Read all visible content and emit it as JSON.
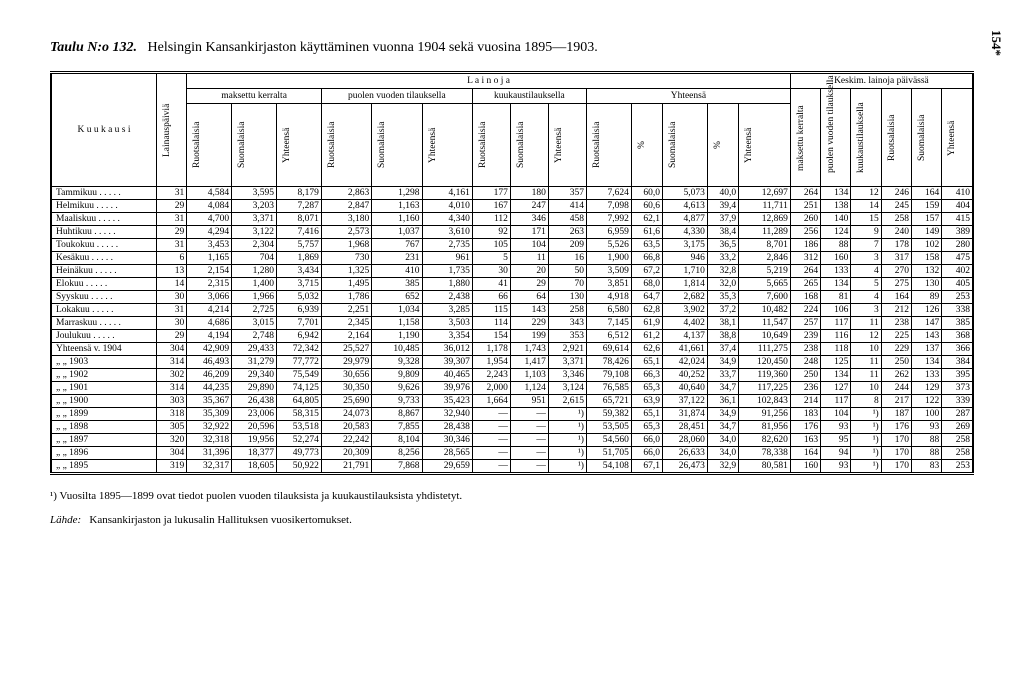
{
  "page_number": "154*",
  "table_no": "Taulu N:o 132.",
  "title": "Helsingin Kansankirjaston käyttäminen vuonna 1904 sekä vuosina 1895—1903.",
  "col_labels": {
    "kuukausi": "K u u k a u s i",
    "lainauspaivia": "Lainauspäiviä",
    "lainoja": "L a i n o j a",
    "keskim": "Keskim. lainoja päivässä",
    "maksettu_kerralta": "maksettu kerralta",
    "puolen_vuoden": "puolen vuoden tilauksella",
    "kuukaustilauk": "kuukaustilauksella",
    "yhteensa": "Yhteensä",
    "ruotsalaisia": "Ruotsalaisia",
    "suomalaisia": "Suomalaisia",
    "yht": "Yhteensä",
    "pct": "%",
    "maksettu_ker": "maksettu kerralta",
    "puolen_vuoden_til": "puolen vuoden tilauksella",
    "kuukaustilauk2": "kuukaustilauksella"
  },
  "months": [
    {
      "name": "Tammikuu",
      "lp": "31",
      "mk_r": "4,584",
      "mk_s": "3,595",
      "mk_y": "8,179",
      "pv_r": "2,863",
      "pv_s": "1,298",
      "pv_y": "4,161",
      "kt_r": "177",
      "kt_s": "180",
      "kt_y": "357",
      "yh_r": "7,624",
      "yh_rp": "60,0",
      "yh_s": "5,073",
      "yh_sp": "40,0",
      "yh_y": "12,697",
      "km_m": "264",
      "km_p": "134",
      "km_k": "12",
      "km_r": "246",
      "km_s": "164",
      "km_y": "410"
    },
    {
      "name": "Helmikuu",
      "lp": "29",
      "mk_r": "4,084",
      "mk_s": "3,203",
      "mk_y": "7,287",
      "pv_r": "2,847",
      "pv_s": "1,163",
      "pv_y": "4,010",
      "kt_r": "167",
      "kt_s": "247",
      "kt_y": "414",
      "yh_r": "7,098",
      "yh_rp": "60,6",
      "yh_s": "4,613",
      "yh_sp": "39,4",
      "yh_y": "11,711",
      "km_m": "251",
      "km_p": "138",
      "km_k": "14",
      "km_r": "245",
      "km_s": "159",
      "km_y": "404"
    },
    {
      "name": "Maaliskuu",
      "lp": "31",
      "mk_r": "4,700",
      "mk_s": "3,371",
      "mk_y": "8,071",
      "pv_r": "3,180",
      "pv_s": "1,160",
      "pv_y": "4,340",
      "kt_r": "112",
      "kt_s": "346",
      "kt_y": "458",
      "yh_r": "7,992",
      "yh_rp": "62,1",
      "yh_s": "4,877",
      "yh_sp": "37,9",
      "yh_y": "12,869",
      "km_m": "260",
      "km_p": "140",
      "km_k": "15",
      "km_r": "258",
      "km_s": "157",
      "km_y": "415"
    },
    {
      "name": "Huhtikuu",
      "lp": "29",
      "mk_r": "4,294",
      "mk_s": "3,122",
      "mk_y": "7,416",
      "pv_r": "2,573",
      "pv_s": "1,037",
      "pv_y": "3,610",
      "kt_r": "92",
      "kt_s": "171",
      "kt_y": "263",
      "yh_r": "6,959",
      "yh_rp": "61,6",
      "yh_s": "4,330",
      "yh_sp": "38,4",
      "yh_y": "11,289",
      "km_m": "256",
      "km_p": "124",
      "km_k": "9",
      "km_r": "240",
      "km_s": "149",
      "km_y": "389"
    },
    {
      "name": "Toukokuu",
      "lp": "31",
      "mk_r": "3,453",
      "mk_s": "2,304",
      "mk_y": "5,757",
      "pv_r": "1,968",
      "pv_s": "767",
      "pv_y": "2,735",
      "kt_r": "105",
      "kt_s": "104",
      "kt_y": "209",
      "yh_r": "5,526",
      "yh_rp": "63,5",
      "yh_s": "3,175",
      "yh_sp": "36,5",
      "yh_y": "8,701",
      "km_m": "186",
      "km_p": "88",
      "km_k": "7",
      "km_r": "178",
      "km_s": "102",
      "km_y": "280"
    },
    {
      "name": "Kesäkuu",
      "lp": "6",
      "mk_r": "1,165",
      "mk_s": "704",
      "mk_y": "1,869",
      "pv_r": "730",
      "pv_s": "231",
      "pv_y": "961",
      "kt_r": "5",
      "kt_s": "11",
      "kt_y": "16",
      "yh_r": "1,900",
      "yh_rp": "66,8",
      "yh_s": "946",
      "yh_sp": "33,2",
      "yh_y": "2,846",
      "km_m": "312",
      "km_p": "160",
      "km_k": "3",
      "km_r": "317",
      "km_s": "158",
      "km_y": "475"
    },
    {
      "name": "Heinäkuu",
      "lp": "13",
      "mk_r": "2,154",
      "mk_s": "1,280",
      "mk_y": "3,434",
      "pv_r": "1,325",
      "pv_s": "410",
      "pv_y": "1,735",
      "kt_r": "30",
      "kt_s": "20",
      "kt_y": "50",
      "yh_r": "3,509",
      "yh_rp": "67,2",
      "yh_s": "1,710",
      "yh_sp": "32,8",
      "yh_y": "5,219",
      "km_m": "264",
      "km_p": "133",
      "km_k": "4",
      "km_r": "270",
      "km_s": "132",
      "km_y": "402"
    },
    {
      "name": "Elokuu",
      "lp": "14",
      "mk_r": "2,315",
      "mk_s": "1,400",
      "mk_y": "3,715",
      "pv_r": "1,495",
      "pv_s": "385",
      "pv_y": "1,880",
      "kt_r": "41",
      "kt_s": "29",
      "kt_y": "70",
      "yh_r": "3,851",
      "yh_rp": "68,0",
      "yh_s": "1,814",
      "yh_sp": "32,0",
      "yh_y": "5,665",
      "km_m": "265",
      "km_p": "134",
      "km_k": "5",
      "km_r": "275",
      "km_s": "130",
      "km_y": "405"
    },
    {
      "name": "Syyskuu",
      "lp": "30",
      "mk_r": "3,066",
      "mk_s": "1,966",
      "mk_y": "5,032",
      "pv_r": "1,786",
      "pv_s": "652",
      "pv_y": "2,438",
      "kt_r": "66",
      "kt_s": "64",
      "kt_y": "130",
      "yh_r": "4,918",
      "yh_rp": "64,7",
      "yh_s": "2,682",
      "yh_sp": "35,3",
      "yh_y": "7,600",
      "km_m": "168",
      "km_p": "81",
      "km_k": "4",
      "km_r": "164",
      "km_s": "89",
      "km_y": "253"
    },
    {
      "name": "Lokakuu",
      "lp": "31",
      "mk_r": "4,214",
      "mk_s": "2,725",
      "mk_y": "6,939",
      "pv_r": "2,251",
      "pv_s": "1,034",
      "pv_y": "3,285",
      "kt_r": "115",
      "kt_s": "143",
      "kt_y": "258",
      "yh_r": "6,580",
      "yh_rp": "62,8",
      "yh_s": "3,902",
      "yh_sp": "37,2",
      "yh_y": "10,482",
      "km_m": "224",
      "km_p": "106",
      "km_k": "3",
      "km_r": "212",
      "km_s": "126",
      "km_y": "338"
    },
    {
      "name": "Marraskuu",
      "lp": "30",
      "mk_r": "4,686",
      "mk_s": "3,015",
      "mk_y": "7,701",
      "pv_r": "2,345",
      "pv_s": "1,158",
      "pv_y": "3,503",
      "kt_r": "114",
      "kt_s": "229",
      "kt_y": "343",
      "yh_r": "7,145",
      "yh_rp": "61,9",
      "yh_s": "4,402",
      "yh_sp": "38,1",
      "yh_y": "11,547",
      "km_m": "257",
      "km_p": "117",
      "km_k": "11",
      "km_r": "238",
      "km_s": "147",
      "km_y": "385"
    },
    {
      "name": "Joulukuu",
      "lp": "29",
      "mk_r": "4,194",
      "mk_s": "2,748",
      "mk_y": "6,942",
      "pv_r": "2,164",
      "pv_s": "1,190",
      "pv_y": "3,354",
      "kt_r": "154",
      "kt_s": "199",
      "kt_y": "353",
      "yh_r": "6,512",
      "yh_rp": "61,2",
      "yh_s": "4,137",
      "yh_sp": "38,8",
      "yh_y": "10,649",
      "km_m": "239",
      "km_p": "116",
      "km_k": "12",
      "km_r": "225",
      "km_s": "143",
      "km_y": "368"
    }
  ],
  "years": [
    {
      "name": "Yhteensä v. 1904",
      "lp": "304",
      "mk_r": "42,909",
      "mk_s": "29,433",
      "mk_y": "72,342",
      "pv_r": "25,527",
      "pv_s": "10,485",
      "pv_y": "36,012",
      "kt_r": "1,178",
      "kt_s": "1,743",
      "kt_y": "2,921",
      "yh_r": "69,614",
      "yh_rp": "62,6",
      "yh_s": "41,661",
      "yh_sp": "37,4",
      "yh_y": "111,275",
      "km_m": "238",
      "km_p": "118",
      "km_k": "10",
      "km_r": "229",
      "km_s": "137",
      "km_y": "366"
    },
    {
      "name": "„       „   1903",
      "lp": "314",
      "mk_r": "46,493",
      "mk_s": "31,279",
      "mk_y": "77,772",
      "pv_r": "29,979",
      "pv_s": "9,328",
      "pv_y": "39,307",
      "kt_r": "1,954",
      "kt_s": "1,417",
      "kt_y": "3,371",
      "yh_r": "78,426",
      "yh_rp": "65,1",
      "yh_s": "42,024",
      "yh_sp": "34,9",
      "yh_y": "120,450",
      "km_m": "248",
      "km_p": "125",
      "km_k": "11",
      "km_r": "250",
      "km_s": "134",
      "km_y": "384"
    },
    {
      "name": "„       „   1902",
      "lp": "302",
      "mk_r": "46,209",
      "mk_s": "29,340",
      "mk_y": "75,549",
      "pv_r": "30,656",
      "pv_s": "9,809",
      "pv_y": "40,465",
      "kt_r": "2,243",
      "kt_s": "1,103",
      "kt_y": "3,346",
      "yh_r": "79,108",
      "yh_rp": "66,3",
      "yh_s": "40,252",
      "yh_sp": "33,7",
      "yh_y": "119,360",
      "km_m": "250",
      "km_p": "134",
      "km_k": "11",
      "km_r": "262",
      "km_s": "133",
      "km_y": "395"
    },
    {
      "name": "„       „   1901",
      "lp": "314",
      "mk_r": "44,235",
      "mk_s": "29,890",
      "mk_y": "74,125",
      "pv_r": "30,350",
      "pv_s": "9,626",
      "pv_y": "39,976",
      "kt_r": "2,000",
      "kt_s": "1,124",
      "kt_y": "3,124",
      "yh_r": "76,585",
      "yh_rp": "65,3",
      "yh_s": "40,640",
      "yh_sp": "34,7",
      "yh_y": "117,225",
      "km_m": "236",
      "km_p": "127",
      "km_k": "10",
      "km_r": "244",
      "km_s": "129",
      "km_y": "373"
    },
    {
      "name": "„       „   1900",
      "lp": "303",
      "mk_r": "35,367",
      "mk_s": "26,438",
      "mk_y": "64,805",
      "pv_r": "25,690",
      "pv_s": "9,733",
      "pv_y": "35,423",
      "kt_r": "1,664",
      "kt_s": "951",
      "kt_y": "2,615",
      "yh_r": "65,721",
      "yh_rp": "63,9",
      "yh_s": "37,122",
      "yh_sp": "36,1",
      "yh_y": "102,843",
      "km_m": "214",
      "km_p": "117",
      "km_k": "8",
      "km_r": "217",
      "km_s": "122",
      "km_y": "339"
    },
    {
      "name": "„       „   1899",
      "lp": "318",
      "mk_r": "35,309",
      "mk_s": "23,006",
      "mk_y": "58,315",
      "pv_r": "24,073",
      "pv_s": "8,867",
      "pv_y": "32,940",
      "kt_r": "—",
      "kt_s": "—",
      "kt_y": "¹)",
      "yh_r": "59,382",
      "yh_rp": "65,1",
      "yh_s": "31,874",
      "yh_sp": "34,9",
      "yh_y": "91,256",
      "km_m": "183",
      "km_p": "104",
      "km_k": "¹)",
      "km_r": "187",
      "km_s": "100",
      "km_y": "287"
    },
    {
      "name": "„       „   1898",
      "lp": "305",
      "mk_r": "32,922",
      "mk_s": "20,596",
      "mk_y": "53,518",
      "pv_r": "20,583",
      "pv_s": "7,855",
      "pv_y": "28,438",
      "kt_r": "—",
      "kt_s": "—",
      "kt_y": "¹)",
      "yh_r": "53,505",
      "yh_rp": "65,3",
      "yh_s": "28,451",
      "yh_sp": "34,7",
      "yh_y": "81,956",
      "km_m": "176",
      "km_p": "93",
      "km_k": "¹)",
      "km_r": "176",
      "km_s": "93",
      "km_y": "269"
    },
    {
      "name": "„       „   1897",
      "lp": "320",
      "mk_r": "32,318",
      "mk_s": "19,956",
      "mk_y": "52,274",
      "pv_r": "22,242",
      "pv_s": "8,104",
      "pv_y": "30,346",
      "kt_r": "—",
      "kt_s": "—",
      "kt_y": "¹)",
      "yh_r": "54,560",
      "yh_rp": "66,0",
      "yh_s": "28,060",
      "yh_sp": "34,0",
      "yh_y": "82,620",
      "km_m": "163",
      "km_p": "95",
      "km_k": "¹)",
      "km_r": "170",
      "km_s": "88",
      "km_y": "258"
    },
    {
      "name": "„       „   1896",
      "lp": "304",
      "mk_r": "31,396",
      "mk_s": "18,377",
      "mk_y": "49,773",
      "pv_r": "20,309",
      "pv_s": "8,256",
      "pv_y": "28,565",
      "kt_r": "—",
      "kt_s": "—",
      "kt_y": "¹)",
      "yh_r": "51,705",
      "yh_rp": "66,0",
      "yh_s": "26,633",
      "yh_sp": "34,0",
      "yh_y": "78,338",
      "km_m": "164",
      "km_p": "94",
      "km_k": "¹)",
      "km_r": "170",
      "km_s": "88",
      "km_y": "258"
    },
    {
      "name": "„       „   1895",
      "lp": "319",
      "mk_r": "32,317",
      "mk_s": "18,605",
      "mk_y": "50,922",
      "pv_r": "21,791",
      "pv_s": "7,868",
      "pv_y": "29,659",
      "kt_r": "—",
      "kt_s": "—",
      "kt_y": "¹)",
      "yh_r": "54,108",
      "yh_rp": "67,1",
      "yh_s": "26,473",
      "yh_sp": "32,9",
      "yh_y": "80,581",
      "km_m": "160",
      "km_p": "93",
      "km_k": "¹)",
      "km_r": "170",
      "km_s": "83",
      "km_y": "253"
    }
  ],
  "footnote": "¹) Vuosilta 1895—1899 ovat tiedot puolen vuoden tilauksista ja kuukaustilauksista yhdistetyt.",
  "source_label": "Lähde:",
  "source": "Kansankirjaston ja lukusalin Hallituksen vuosikertomukset."
}
